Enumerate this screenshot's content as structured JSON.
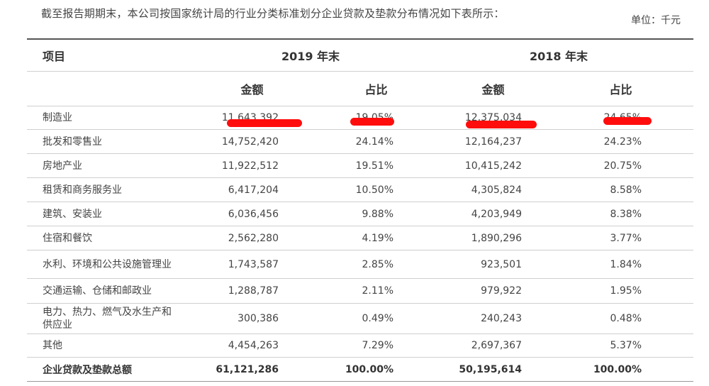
{
  "intro": "截至报告期期末，本公司按国家统计局的行业分类标准划分企业贷款及垫款分布情况如下表所示：",
  "unit": "单位：千元",
  "table": {
    "col_item": "项目",
    "year1": "2019 年末",
    "year2": "2018 年末",
    "amount": "金额",
    "ratio": "占比",
    "rows": [
      {
        "name": "制造业",
        "a1": "11,643,392",
        "r1": "19.05%",
        "a2": "12,375,034",
        "r2": "24.65%"
      },
      {
        "name": "批发和零售业",
        "a1": "14,752,420",
        "r1": "24.14%",
        "a2": "12,164,237",
        "r2": "24.23%"
      },
      {
        "name": "房地产业",
        "a1": "11,922,512",
        "r1": "19.51%",
        "a2": "10,415,242",
        "r2": "20.75%"
      },
      {
        "name": "租赁和商务服务业",
        "a1": "6,417,204",
        "r1": "10.50%",
        "a2": "4,305,824",
        "r2": "8.58%"
      },
      {
        "name": "建筑、安装业",
        "a1": "6,036,456",
        "r1": "9.88%",
        "a2": "4,203,949",
        "r2": "8.38%"
      },
      {
        "name": "住宿和餐饮",
        "a1": "2,562,280",
        "r1": "4.19%",
        "a2": "1,890,296",
        "r2": "3.77%"
      },
      {
        "name": "水利、环境和公共设施管理业",
        "a1": "1,743,587",
        "r1": "2.85%",
        "a2": "923,501",
        "r2": "1.84%"
      },
      {
        "name": "交通运输、仓储和邮政业",
        "a1": "1,288,787",
        "r1": "2.11%",
        "a2": "979,922",
        "r2": "1.95%"
      },
      {
        "name": "电力、热力、燃气及水生产和供应业",
        "a1": "300,386",
        "r1": "0.49%",
        "a2": "240,243",
        "r2": "0.48%"
      },
      {
        "name": "其他",
        "a1": "4,454,263",
        "r1": "7.29%",
        "a2": "2,697,367",
        "r2": "5.37%"
      }
    ],
    "total": {
      "name": "企业贷款及垫款总额",
      "a1": "61,121,286",
      "r1": "100.00%",
      "a2": "50,195,614",
      "r2": "100.00%"
    }
  },
  "colors": {
    "redaction": "#ff0d0d"
  }
}
